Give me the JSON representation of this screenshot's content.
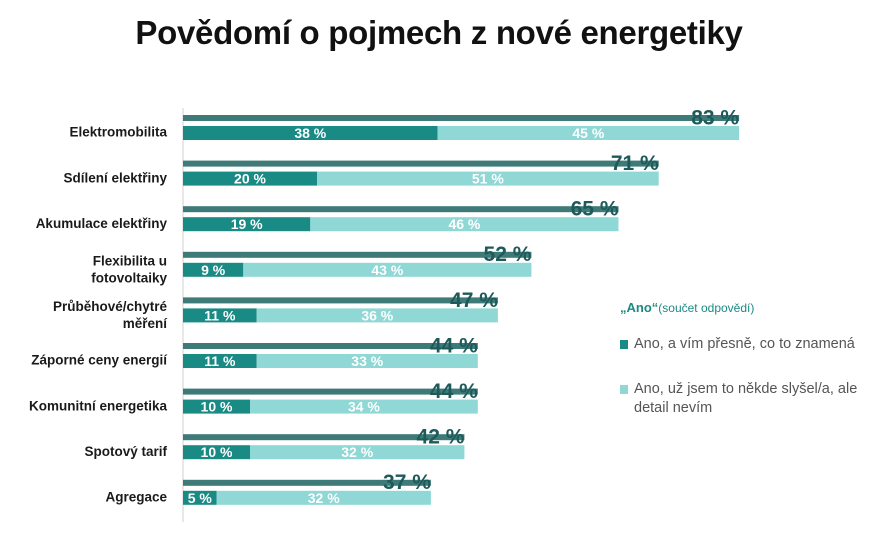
{
  "title": "Povědomí o pojmech z nové energetiky",
  "legend": {
    "title_bold": "„Ano“",
    "title_rest": "(součet odpovědí)",
    "items": [
      {
        "label": "Ano, a vím přesně, co to znamená",
        "color": "#1a8a84"
      },
      {
        "label": "Ano, už jsem to někde slyšel/a, ale detail nevím",
        "color": "#8fd8d6"
      }
    ]
  },
  "chart_data": {
    "type": "bar",
    "orientation": "horizontal",
    "stacked": true,
    "title": "Povědomí o pojmech z nové energetiky",
    "categories": [
      [
        "Elektromobilita"
      ],
      [
        "Sdílení elektřiny"
      ],
      [
        "Akumulace elektřiny"
      ],
      [
        "Flexibilita u",
        "fotovoltaiky"
      ],
      [
        "Průběhové/chytré",
        "měření"
      ],
      [
        "Záporné ceny energií"
      ],
      [
        "Komunitní energetika"
      ],
      [
        "Spotový tarif"
      ],
      [
        "Agregace"
      ]
    ],
    "totals": [
      83,
      71,
      65,
      52,
      47,
      44,
      44,
      42,
      37
    ],
    "totals_labels": [
      "83 %",
      "71 %",
      "65 %",
      "52 %",
      "47 %",
      "44 %",
      "44 %",
      "42 %",
      "37 %"
    ],
    "total_bar_color": "#3d7a78",
    "series": [
      {
        "name": "Ano, a vím přesně, co to znamená",
        "color": "#1a8a84",
        "values": [
          38,
          20,
          19,
          9,
          11,
          11,
          10,
          10,
          5
        ],
        "labels": [
          "38 %",
          "20 %",
          "19 %",
          "9 %",
          "11 %",
          "11 %",
          "10 %",
          "10 %",
          "5 %"
        ]
      },
      {
        "name": "Ano, už jsem to někde slyšel/a, ale detail nevím",
        "color": "#8fd8d6",
        "values": [
          45,
          51,
          46,
          43,
          36,
          33,
          34,
          32,
          32
        ],
        "labels": [
          "45 %",
          "51 %",
          "46 %",
          "43 %",
          "36 %",
          "33 %",
          "34 %",
          "32 %",
          "32 %"
        ]
      }
    ],
    "xlim": [
      0,
      100
    ]
  }
}
